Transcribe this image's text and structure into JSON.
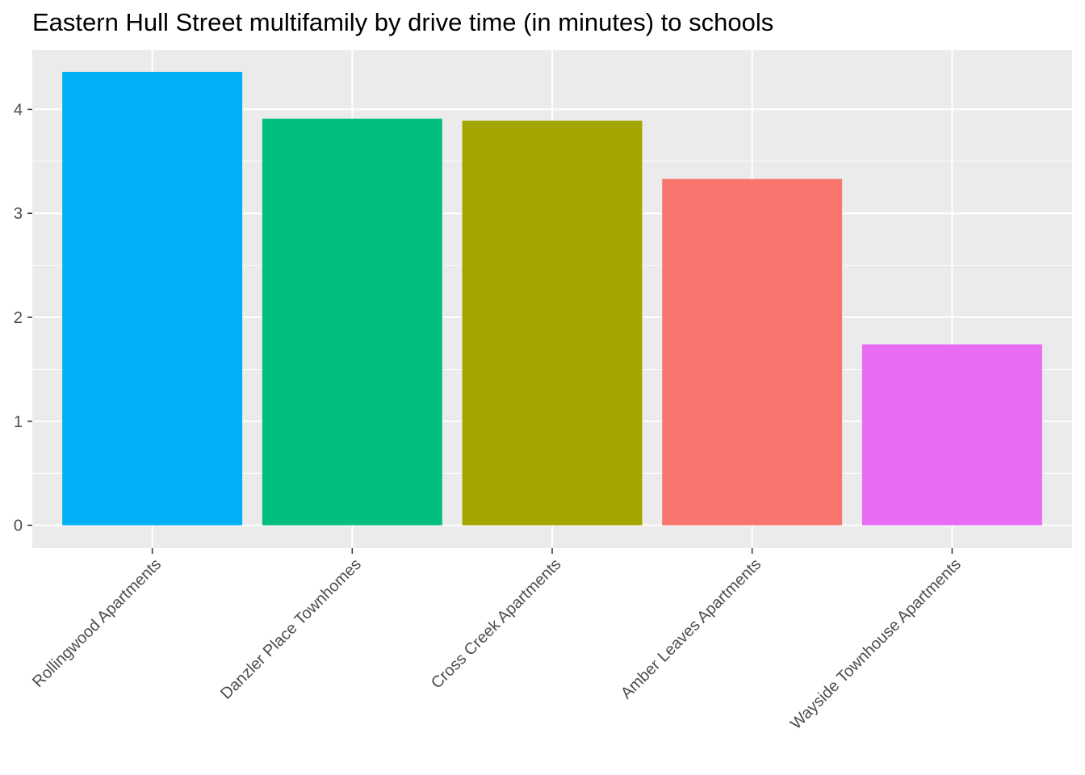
{
  "chart_data": {
    "type": "bar",
    "title": "Eastern Hull Street multifamily by drive time (in minutes) to schools",
    "xlabel": "",
    "ylabel": "",
    "categories": [
      "Rollingwood Apartments",
      "Danzler Place Townhomes",
      "Cross Creek Apartments",
      "Amber Leaves Apartments",
      "Wayside Townhouse Apartments"
    ],
    "values": [
      4.36,
      3.91,
      3.89,
      3.33,
      1.74
    ],
    "bar_colors": [
      "#00B0F6",
      "#00BF7D",
      "#A3A500",
      "#F8766D",
      "#E76BF3"
    ],
    "ylim": [
      -0.22,
      4.57
    ],
    "y_ticks": [
      0,
      1,
      2,
      3,
      4
    ],
    "grid": true,
    "legend": "none",
    "panel_background": "#EBEBEB",
    "grid_color": "#FFFFFF"
  }
}
